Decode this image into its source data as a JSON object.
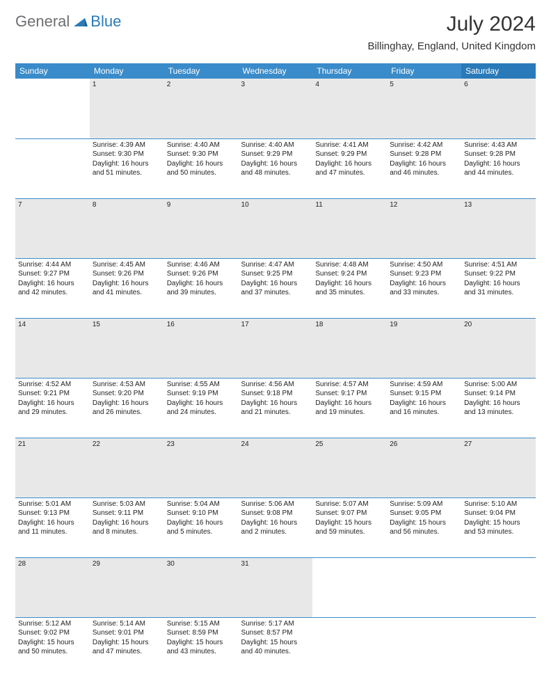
{
  "brand": {
    "part1": "General",
    "part2": "Blue"
  },
  "title": "July 2024",
  "location": "Billinghay, England, United Kingdom",
  "colors": {
    "header_bg": "#3a8bc9",
    "header_bg_alt": "#2a7ab9",
    "daynum_bg": "#e8e8e8",
    "rule": "#3a8bc9",
    "text": "#222",
    "brand_gray": "#6d6e71",
    "brand_blue": "#2a7ab9"
  },
  "weekdays": [
    "Sunday",
    "Monday",
    "Tuesday",
    "Wednesday",
    "Thursday",
    "Friday",
    "Saturday"
  ],
  "weeks": [
    {
      "nums": [
        "",
        "1",
        "2",
        "3",
        "4",
        "5",
        "6"
      ],
      "cells": [
        {
          "sunrise": "",
          "sunset": "",
          "daylight": ""
        },
        {
          "sunrise": "Sunrise: 4:39 AM",
          "sunset": "Sunset: 9:30 PM",
          "daylight": "Daylight: 16 hours and 51 minutes."
        },
        {
          "sunrise": "Sunrise: 4:40 AM",
          "sunset": "Sunset: 9:30 PM",
          "daylight": "Daylight: 16 hours and 50 minutes."
        },
        {
          "sunrise": "Sunrise: 4:40 AM",
          "sunset": "Sunset: 9:29 PM",
          "daylight": "Daylight: 16 hours and 48 minutes."
        },
        {
          "sunrise": "Sunrise: 4:41 AM",
          "sunset": "Sunset: 9:29 PM",
          "daylight": "Daylight: 16 hours and 47 minutes."
        },
        {
          "sunrise": "Sunrise: 4:42 AM",
          "sunset": "Sunset: 9:28 PM",
          "daylight": "Daylight: 16 hours and 46 minutes."
        },
        {
          "sunrise": "Sunrise: 4:43 AM",
          "sunset": "Sunset: 9:28 PM",
          "daylight": "Daylight: 16 hours and 44 minutes."
        }
      ]
    },
    {
      "nums": [
        "7",
        "8",
        "9",
        "10",
        "11",
        "12",
        "13"
      ],
      "cells": [
        {
          "sunrise": "Sunrise: 4:44 AM",
          "sunset": "Sunset: 9:27 PM",
          "daylight": "Daylight: 16 hours and 42 minutes."
        },
        {
          "sunrise": "Sunrise: 4:45 AM",
          "sunset": "Sunset: 9:26 PM",
          "daylight": "Daylight: 16 hours and 41 minutes."
        },
        {
          "sunrise": "Sunrise: 4:46 AM",
          "sunset": "Sunset: 9:26 PM",
          "daylight": "Daylight: 16 hours and 39 minutes."
        },
        {
          "sunrise": "Sunrise: 4:47 AM",
          "sunset": "Sunset: 9:25 PM",
          "daylight": "Daylight: 16 hours and 37 minutes."
        },
        {
          "sunrise": "Sunrise: 4:48 AM",
          "sunset": "Sunset: 9:24 PM",
          "daylight": "Daylight: 16 hours and 35 minutes."
        },
        {
          "sunrise": "Sunrise: 4:50 AM",
          "sunset": "Sunset: 9:23 PM",
          "daylight": "Daylight: 16 hours and 33 minutes."
        },
        {
          "sunrise": "Sunrise: 4:51 AM",
          "sunset": "Sunset: 9:22 PM",
          "daylight": "Daylight: 16 hours and 31 minutes."
        }
      ]
    },
    {
      "nums": [
        "14",
        "15",
        "16",
        "17",
        "18",
        "19",
        "20"
      ],
      "cells": [
        {
          "sunrise": "Sunrise: 4:52 AM",
          "sunset": "Sunset: 9:21 PM",
          "daylight": "Daylight: 16 hours and 29 minutes."
        },
        {
          "sunrise": "Sunrise: 4:53 AM",
          "sunset": "Sunset: 9:20 PM",
          "daylight": "Daylight: 16 hours and 26 minutes."
        },
        {
          "sunrise": "Sunrise: 4:55 AM",
          "sunset": "Sunset: 9:19 PM",
          "daylight": "Daylight: 16 hours and 24 minutes."
        },
        {
          "sunrise": "Sunrise: 4:56 AM",
          "sunset": "Sunset: 9:18 PM",
          "daylight": "Daylight: 16 hours and 21 minutes."
        },
        {
          "sunrise": "Sunrise: 4:57 AM",
          "sunset": "Sunset: 9:17 PM",
          "daylight": "Daylight: 16 hours and 19 minutes."
        },
        {
          "sunrise": "Sunrise: 4:59 AM",
          "sunset": "Sunset: 9:15 PM",
          "daylight": "Daylight: 16 hours and 16 minutes."
        },
        {
          "sunrise": "Sunrise: 5:00 AM",
          "sunset": "Sunset: 9:14 PM",
          "daylight": "Daylight: 16 hours and 13 minutes."
        }
      ]
    },
    {
      "nums": [
        "21",
        "22",
        "23",
        "24",
        "25",
        "26",
        "27"
      ],
      "cells": [
        {
          "sunrise": "Sunrise: 5:01 AM",
          "sunset": "Sunset: 9:13 PM",
          "daylight": "Daylight: 16 hours and 11 minutes."
        },
        {
          "sunrise": "Sunrise: 5:03 AM",
          "sunset": "Sunset: 9:11 PM",
          "daylight": "Daylight: 16 hours and 8 minutes."
        },
        {
          "sunrise": "Sunrise: 5:04 AM",
          "sunset": "Sunset: 9:10 PM",
          "daylight": "Daylight: 16 hours and 5 minutes."
        },
        {
          "sunrise": "Sunrise: 5:06 AM",
          "sunset": "Sunset: 9:08 PM",
          "daylight": "Daylight: 16 hours and 2 minutes."
        },
        {
          "sunrise": "Sunrise: 5:07 AM",
          "sunset": "Sunset: 9:07 PM",
          "daylight": "Daylight: 15 hours and 59 minutes."
        },
        {
          "sunrise": "Sunrise: 5:09 AM",
          "sunset": "Sunset: 9:05 PM",
          "daylight": "Daylight: 15 hours and 56 minutes."
        },
        {
          "sunrise": "Sunrise: 5:10 AM",
          "sunset": "Sunset: 9:04 PM",
          "daylight": "Daylight: 15 hours and 53 minutes."
        }
      ]
    },
    {
      "nums": [
        "28",
        "29",
        "30",
        "31",
        "",
        "",
        ""
      ],
      "cells": [
        {
          "sunrise": "Sunrise: 5:12 AM",
          "sunset": "Sunset: 9:02 PM",
          "daylight": "Daylight: 15 hours and 50 minutes."
        },
        {
          "sunrise": "Sunrise: 5:14 AM",
          "sunset": "Sunset: 9:01 PM",
          "daylight": "Daylight: 15 hours and 47 minutes."
        },
        {
          "sunrise": "Sunrise: 5:15 AM",
          "sunset": "Sunset: 8:59 PM",
          "daylight": "Daylight: 15 hours and 43 minutes."
        },
        {
          "sunrise": "Sunrise: 5:17 AM",
          "sunset": "Sunset: 8:57 PM",
          "daylight": "Daylight: 15 hours and 40 minutes."
        },
        {
          "sunrise": "",
          "sunset": "",
          "daylight": ""
        },
        {
          "sunrise": "",
          "sunset": "",
          "daylight": ""
        },
        {
          "sunrise": "",
          "sunset": "",
          "daylight": ""
        }
      ]
    }
  ]
}
